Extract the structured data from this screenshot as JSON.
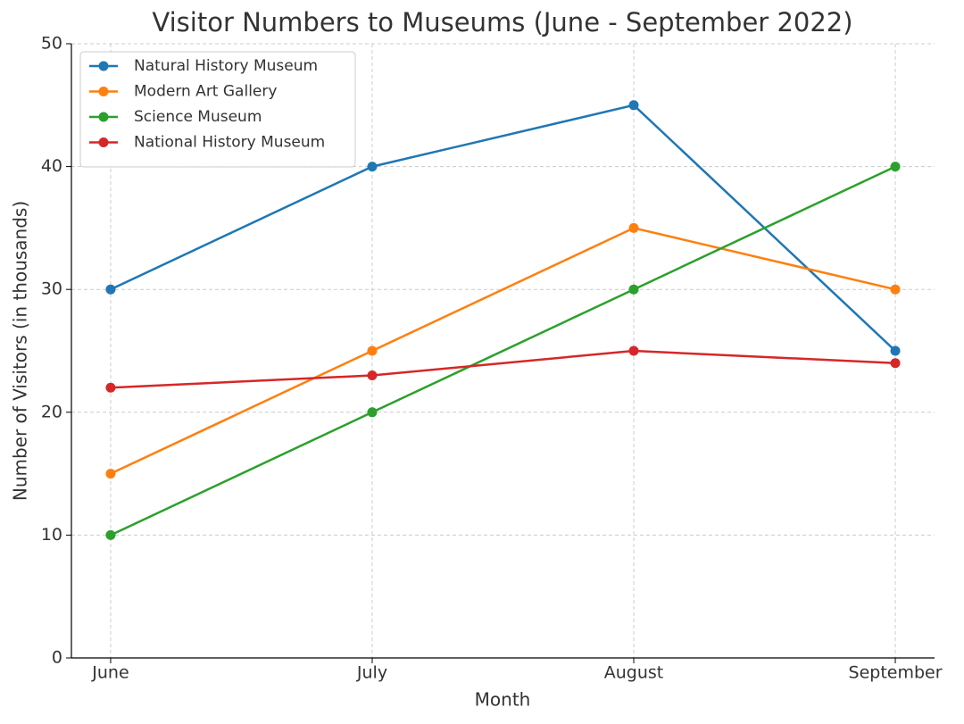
{
  "chart_data": {
    "type": "line",
    "title": "Visitor Numbers to Museums (June - September 2022)",
    "x_label": "Month",
    "y_label": "Number of Visitors (in thousands)",
    "categories": [
      "June",
      "July",
      "August",
      "September"
    ],
    "series": [
      {
        "name": "Natural History Museum",
        "color": "#1f77b4",
        "values": [
          30,
          40,
          45,
          25
        ]
      },
      {
        "name": "Modern Art Gallery",
        "color": "#ff7f0e",
        "values": [
          15,
          25,
          35,
          30
        ]
      },
      {
        "name": "Science Museum",
        "color": "#2ca02c",
        "values": [
          10,
          20,
          30,
          40
        ]
      },
      {
        "name": "National History Museum",
        "color": "#d62728",
        "values": [
          22,
          23,
          25,
          24
        ]
      }
    ],
    "ylim": [
      0,
      50
    ],
    "yticks": [
      0,
      10,
      20,
      30,
      40,
      50
    ],
    "grid": true,
    "legend": "upper left"
  }
}
